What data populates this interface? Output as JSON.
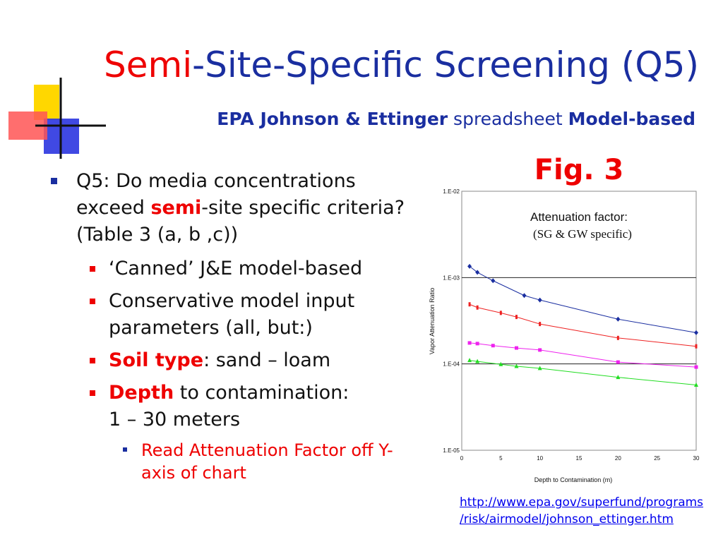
{
  "title": {
    "red": "Semi",
    "rest": "-Site-Specific Screening (Q5)"
  },
  "subtitle": {
    "part1": "EPA Johnson & Ettinger",
    "part2": " spreadsheet ",
    "part3": "Model-based"
  },
  "fig_label": "Fig. 3",
  "bullets": {
    "q5_a": "Q5: Do media concentrations exceed ",
    "q5_b": "semi",
    "q5_c": "-site specific criteria? (Table 3 (a, b ,c))",
    "canned": "‘Canned’ J&E model-based",
    "conservative": "Conservative model input parameters (all, but:)",
    "soil_a": "Soil type",
    "soil_b": ": sand – loam",
    "depth_a": "Depth",
    "depth_b": " to contamination:",
    "depth_c": "1 – 30 meters",
    "read": "Read Attenuation Factor off Y-axis of chart"
  },
  "chart_data": {
    "type": "line",
    "title": "",
    "annotation_1": "Attenuation factor:",
    "annotation_2": "(SG & GW specific)",
    "xlabel": "Depth to Contamination (m)",
    "ylabel": "Vapor Attenuation Ratio",
    "x_ticks": [
      "0",
      "5",
      "10",
      "15",
      "20",
      "25",
      "30"
    ],
    "y_ticks": [
      "1.E-02",
      "1.E-03",
      "1.E-04",
      "1.E-05"
    ],
    "xlim": [
      0,
      30
    ],
    "ylim": [
      1e-05,
      0.01
    ],
    "yscale": "log",
    "grid": "horizontal lines at 1.E-03 and 1.E-04",
    "series": [
      {
        "color": "#1a2ea0",
        "marker": "diamond",
        "x": [
          1,
          2,
          4,
          8,
          10,
          20,
          30
        ],
        "y": [
          0.00135,
          0.00115,
          0.00092,
          0.00062,
          0.00055,
          0.00033,
          0.00023
        ]
      },
      {
        "color": "#ee2222",
        "marker": "dash",
        "x": [
          1,
          2,
          5,
          7,
          10,
          20,
          30
        ],
        "y": [
          0.00049,
          0.00045,
          0.00039,
          0.00035,
          0.00029,
          0.0002,
          0.00016
        ]
      },
      {
        "color": "#ee22ee",
        "marker": "square",
        "x": [
          1,
          2,
          4,
          7,
          10,
          20,
          30
        ],
        "y": [
          0.000175,
          0.000172,
          0.000163,
          0.000153,
          0.000145,
          0.000105,
          9.2e-05
        ]
      },
      {
        "color": "#22dd22",
        "marker": "triangle",
        "x": [
          1,
          2,
          5,
          7,
          10,
          20,
          30
        ],
        "y": [
          0.00011,
          0.000107,
          9.9e-05,
          9.4e-05,
          8.9e-05,
          7e-05,
          5.7e-05
        ]
      }
    ]
  },
  "url_line1": "http://www.epa.gov/superfund/programs",
  "url_line2": "/risk/airmodel/johnson_ettinger.htm"
}
